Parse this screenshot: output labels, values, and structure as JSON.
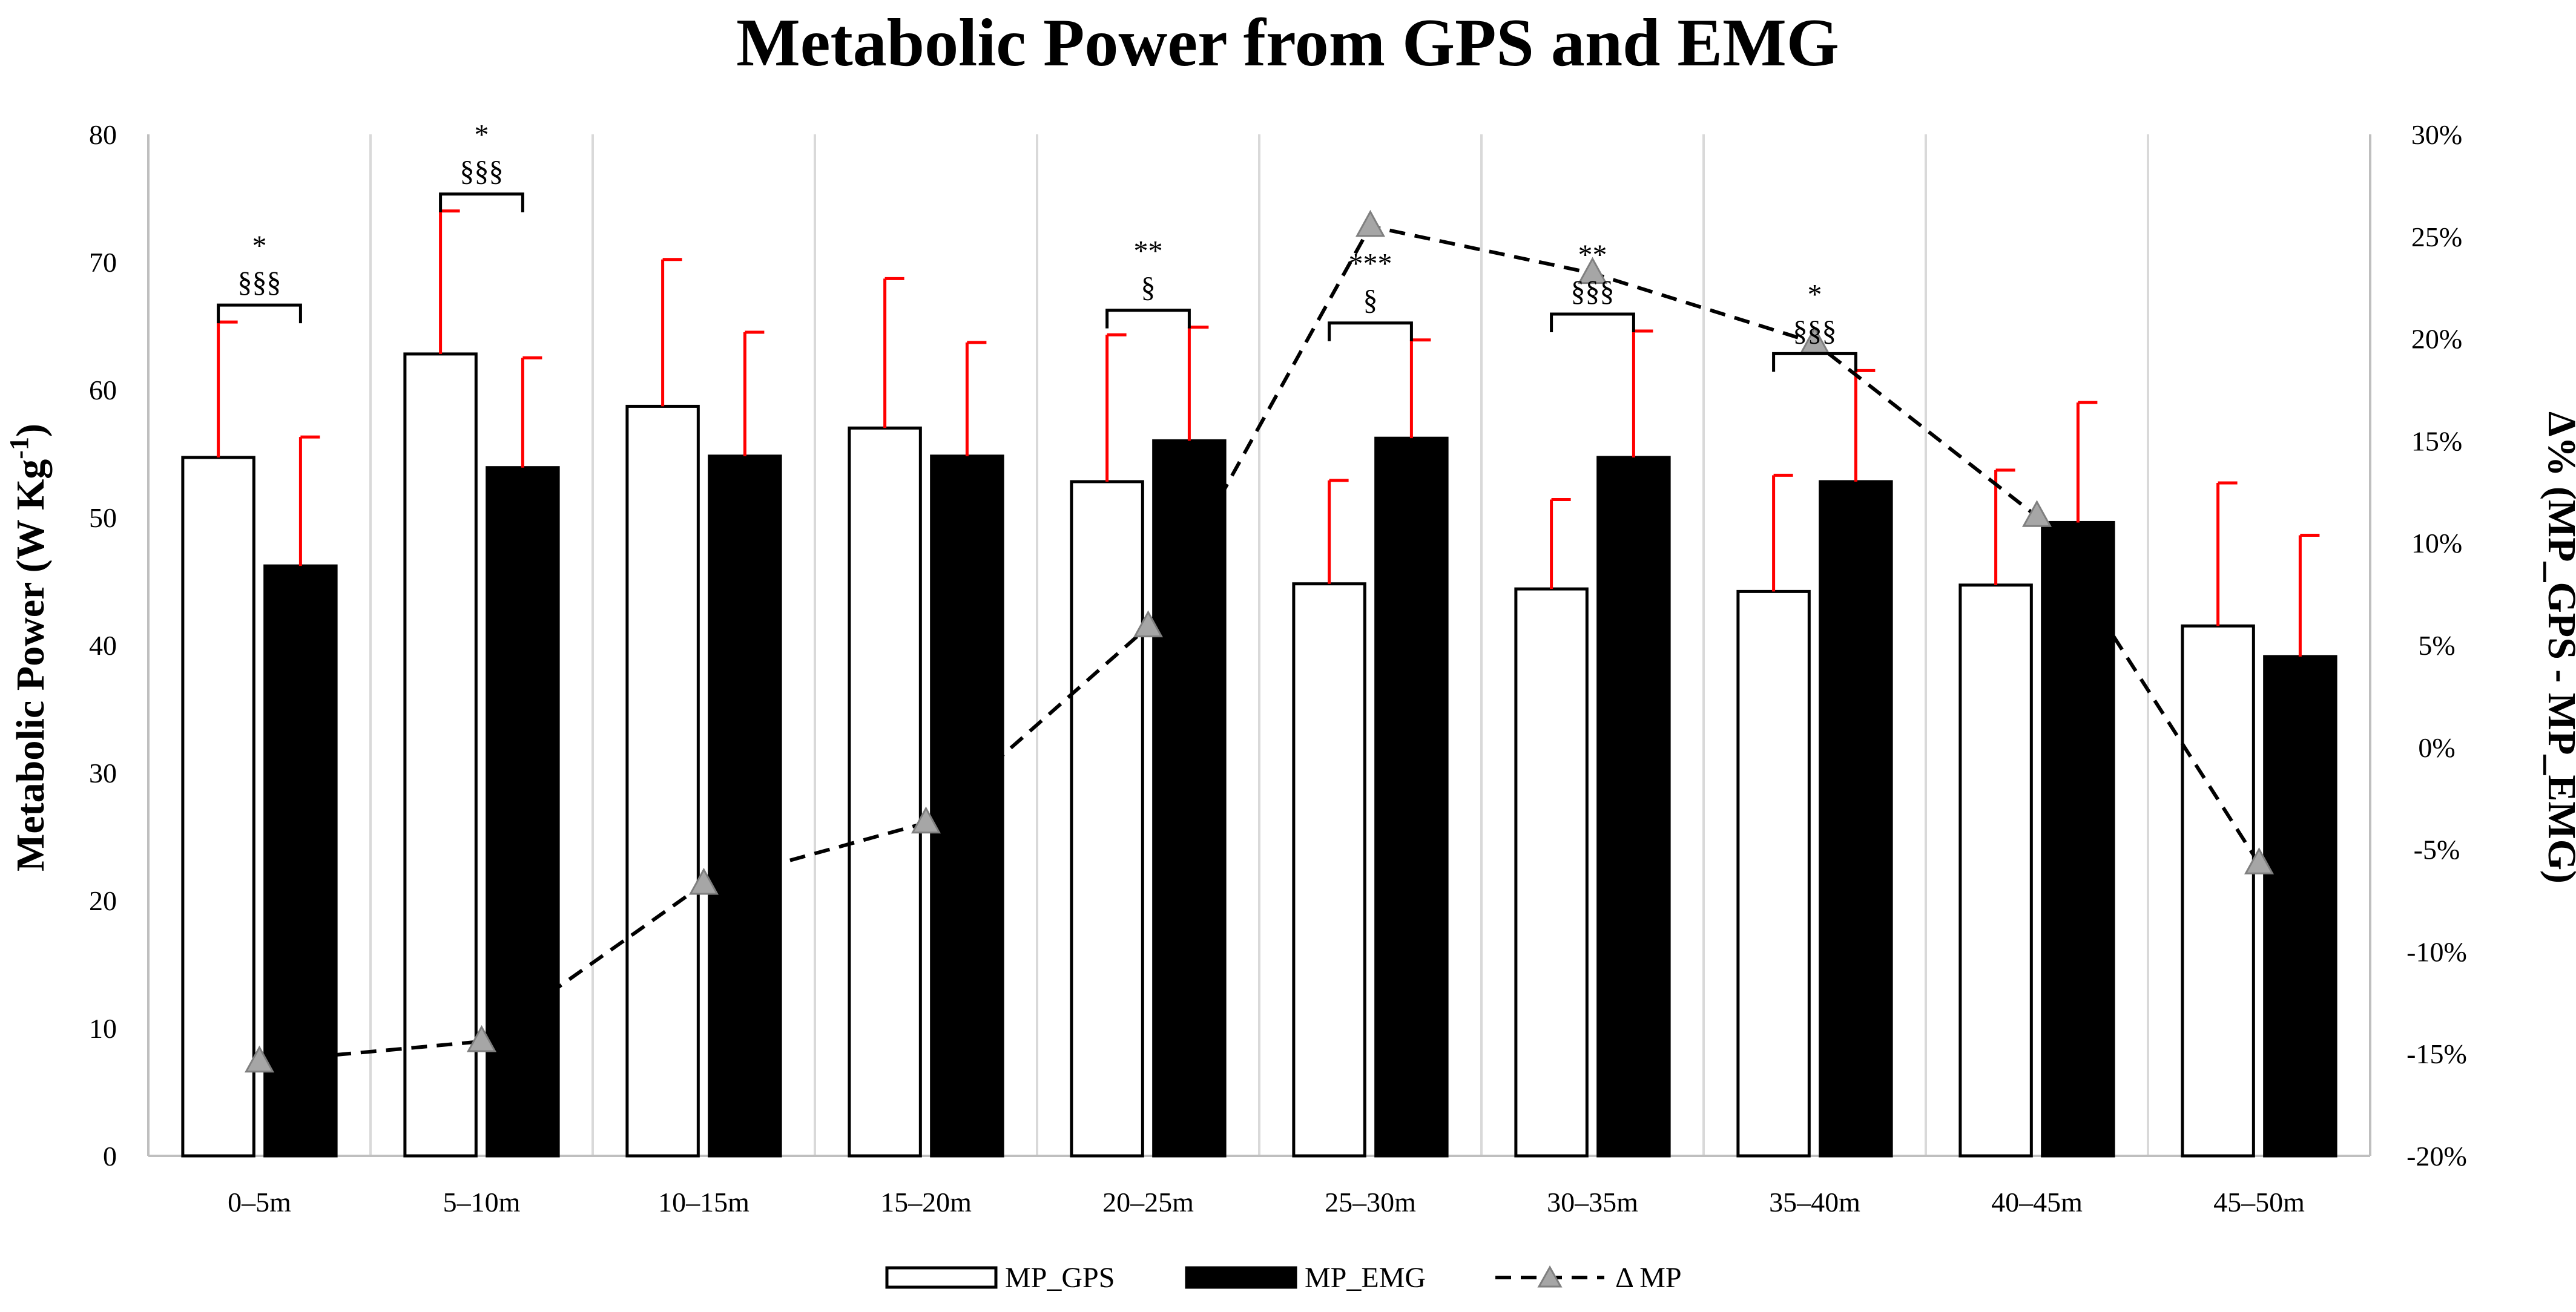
{
  "chart_data": {
    "type": "bar",
    "title": "Metabolic Power from GPS and EMG",
    "ylabel_left": "Metabolic Power (W Kg",
    "ylabel_left_sup": "-1",
    "ylabel_left_close": ")",
    "ylabel_right": "Δ% (MP_GPS - MP_EMG)",
    "xlabel": "",
    "categories": [
      "0–5m",
      "5–10m",
      "10–15m",
      "15–20m",
      "20–25m",
      "25–30m",
      "30–35m",
      "35–40m",
      "40–45m",
      "45–50m"
    ],
    "ylim_left": [
      0,
      80
    ],
    "yticks_left": [
      "0",
      "10",
      "20",
      "30",
      "40",
      "50",
      "60",
      "70",
      "80"
    ],
    "ylim_right": [
      -20,
      30
    ],
    "yticks_right": [
      "-20%",
      "-15%",
      "-10%",
      "-5%",
      "0%",
      "5%",
      "10%",
      "15%",
      "20%",
      "25%",
      "30%"
    ],
    "series": [
      {
        "name": "MP_GPS",
        "axis": "left",
        "style": "bar-white",
        "values": [
          54.7,
          62.8,
          58.7,
          57.0,
          52.8,
          44.8,
          44.4,
          44.2,
          44.7,
          41.5
        ],
        "error": [
          10.6,
          11.2,
          11.5,
          11.7,
          11.5,
          8.1,
          7.0,
          9.1,
          9.0,
          11.2
        ]
      },
      {
        "name": "MP_EMG",
        "axis": "right-bar",
        "style": "bar-black",
        "values": [
          46.2,
          53.9,
          54.8,
          54.8,
          56.0,
          56.2,
          54.7,
          52.8,
          49.6,
          39.1
        ],
        "error": [
          10.1,
          8.6,
          9.7,
          8.9,
          8.9,
          7.7,
          9.9,
          8.7,
          9.4,
          9.5
        ]
      },
      {
        "name": "Δ MP",
        "axis": "right",
        "style": "dashed-triangle",
        "values": [
          -15.4,
          -14.4,
          -6.7,
          -3.7,
          5.9,
          25.5,
          23.2,
          19.8,
          11.3,
          -5.7
        ]
      }
    ],
    "annotations": [
      {
        "category": "0–5m",
        "lines": [
          "*",
          "§§§"
        ]
      },
      {
        "category": "5–10m",
        "lines": [
          "*",
          "§§§"
        ]
      },
      {
        "category": "20–25m",
        "lines": [
          "**",
          "§"
        ]
      },
      {
        "category": "25–30m",
        "lines": [
          "***",
          "§"
        ]
      },
      {
        "category": "30–35m",
        "lines": [
          "**",
          "§§§"
        ]
      },
      {
        "category": "35–40m",
        "lines": [
          "*",
          "§§§"
        ]
      }
    ],
    "legend": [
      "MP_GPS",
      "MP_EMG",
      "Δ MP"
    ],
    "legend_position": "bottom-center",
    "grid": "vertical-category-separators",
    "colors": {
      "bar_gps_fill": "#ffffff",
      "bar_emg_fill": "#000000",
      "bar_stroke": "#000000",
      "error_bar": "#ff0000",
      "line": "#000000",
      "marker": "#a6a6a6",
      "gridline": "#d9d9d9",
      "axis": "#bfbfbf"
    }
  }
}
